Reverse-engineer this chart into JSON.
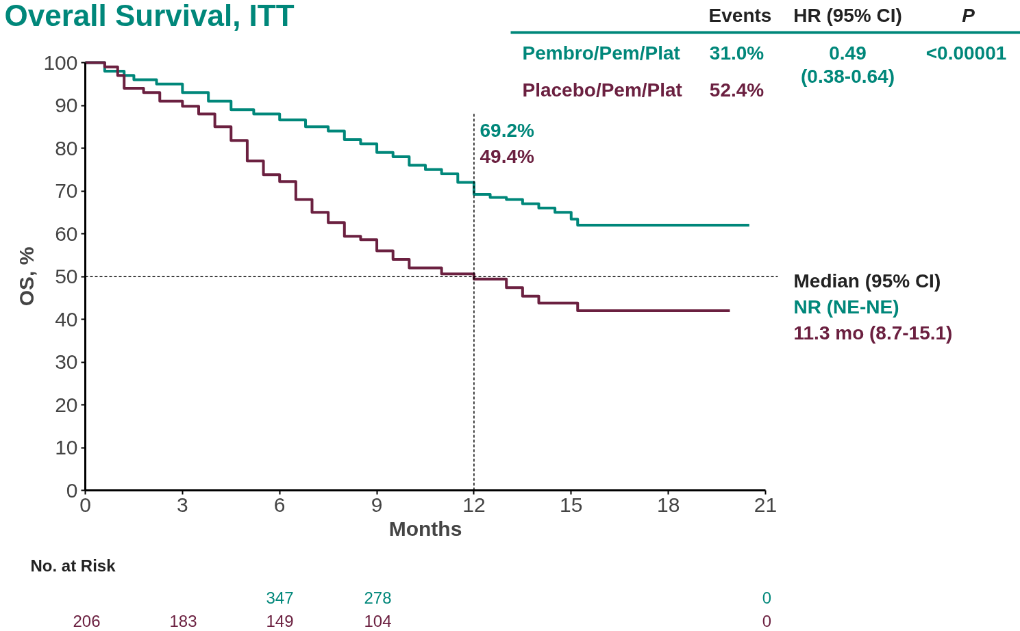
{
  "chart_data": {
    "type": "step",
    "title": "Overall Survival, ITT",
    "xlabel": "Months",
    "ylabel": "OS, %",
    "xlim": [
      0,
      21
    ],
    "xticks": [
      0,
      3,
      6,
      9,
      12,
      15,
      18,
      21
    ],
    "ylim": [
      0,
      100
    ],
    "yticks": [
      0,
      10,
      20,
      30,
      40,
      50,
      60,
      70,
      80,
      90,
      100
    ],
    "grid": false,
    "legend": false,
    "marker": "none",
    "line_style": "solid",
    "series": [
      {
        "name": "Pembro/Pem/Plat",
        "color": "#00877a",
        "x": [
          0,
          0.6,
          1.2,
          1.5,
          2.2,
          3,
          3.8,
          4.5,
          5.2,
          6,
          6.8,
          7.5,
          8,
          8.5,
          9,
          9.5,
          10,
          10.5,
          11,
          11.5,
          12,
          12.5,
          13,
          13.5,
          14,
          14.5,
          15,
          15.2,
          20.5
        ],
        "values": [
          100,
          98,
          97,
          96,
          95,
          93,
          91,
          89,
          88,
          86.6,
          85,
          84,
          82,
          81,
          79,
          78,
          76,
          75,
          74,
          72,
          69.2,
          68.5,
          68,
          67,
          66,
          65,
          63.4,
          62,
          62
        ]
      },
      {
        "name": "Placebo/Pem/Plat",
        "color": "#6b2040",
        "x": [
          0,
          0.6,
          1,
          1.2,
          1.8,
          2.3,
          3,
          3.5,
          4,
          4.5,
          5,
          5.5,
          6,
          6.5,
          7,
          7.5,
          8,
          8.5,
          9,
          9.5,
          10,
          11,
          12,
          13,
          13.5,
          14,
          15.2,
          19.9
        ],
        "values": [
          100,
          99,
          97,
          94,
          93,
          91,
          89.8,
          88,
          85,
          81.8,
          77,
          73.8,
          72.2,
          68,
          65,
          62.6,
          59.4,
          58.6,
          56,
          54,
          52,
          50.6,
          49.4,
          47.4,
          45.4,
          43.8,
          42,
          42
        ]
      }
    ],
    "ref_lines": [
      {
        "axis": "y",
        "value": 50,
        "label": null,
        "color": "#000000",
        "line_style": "dashed"
      },
      {
        "axis": "x",
        "value": 12,
        "label": null,
        "color": "#000000",
        "line_style": "dashed"
      }
    ],
    "annotations": [
      "Events",
      "HR (95% CI)",
      "P",
      "31.0%",
      "52.4%",
      "0.49",
      "(0.38-0.64)",
      "<0.00001",
      "69.2%",
      "49.4%",
      "Median (95% CI)",
      "NR (NE-NE)",
      "11.3 mo (8.7-15.1)",
      "No. at Risk",
      "347",
      "278",
      "0",
      "206",
      "183",
      "149",
      "104",
      "0"
    ]
  }
}
